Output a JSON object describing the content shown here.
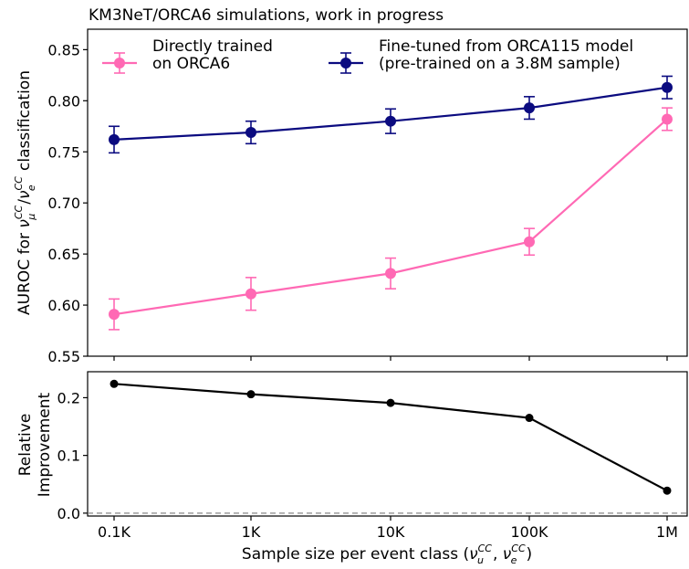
{
  "chart_data": [
    {
      "type": "line",
      "title": "KM3NeT/ORCA6 simulations, work in progress",
      "ylabel": {
        "prefix": "AUROC  for  ",
        "num_base": "ν",
        "num_sup": "CC",
        "num_sub": "μ",
        "slash": "/",
        "den_base": "ν",
        "den_sup": "CC",
        "den_sub": "e",
        "suffix": "  classification"
      },
      "categories": [
        "0.1K",
        "1K",
        "10K",
        "100K",
        "1M"
      ],
      "ylim": [
        0.55,
        0.87
      ],
      "yticks": [
        "0.55",
        "0.60",
        "0.65",
        "0.70",
        "0.75",
        "0.80",
        "0.85"
      ],
      "grid": false,
      "legend_position": "top",
      "series": [
        {
          "name_lines": [
            "Directly trained",
            "on ORCA6"
          ],
          "color": "#ff69b4",
          "values": [
            0.591,
            0.611,
            0.631,
            0.662,
            0.782
          ],
          "err": [
            0.015,
            0.016,
            0.015,
            0.013,
            0.011
          ]
        },
        {
          "name_lines": [
            "Fine-tuned from ORCA115 model",
            "(pre-trained on a 3.8M sample)"
          ],
          "color": "#0b0b80",
          "values": [
            0.762,
            0.769,
            0.78,
            0.793,
            0.813
          ],
          "err": [
            0.013,
            0.011,
            0.012,
            0.011,
            0.011
          ]
        }
      ]
    },
    {
      "type": "line",
      "ylabel_lines": [
        "Relative",
        "Improvement"
      ],
      "xlabel": {
        "prefix": "Sample size per event class (",
        "a_base": "ν",
        "a_sup": "CC",
        "a_sub": "u",
        "sep": ", ",
        "b_base": "ν",
        "b_sup": "CC",
        "b_sub": "e",
        "suffix": ")"
      },
      "categories": [
        "0.1K",
        "1K",
        "10K",
        "100K",
        "1M"
      ],
      "ylim": [
        -0.005,
        0.245
      ],
      "yticks": [
        "0.0",
        "0.1",
        "0.2"
      ],
      "reference_line": 0.0,
      "series": [
        {
          "color": "#000000",
          "values": [
            0.224,
            0.206,
            0.191,
            0.165,
            0.039
          ]
        }
      ]
    }
  ]
}
